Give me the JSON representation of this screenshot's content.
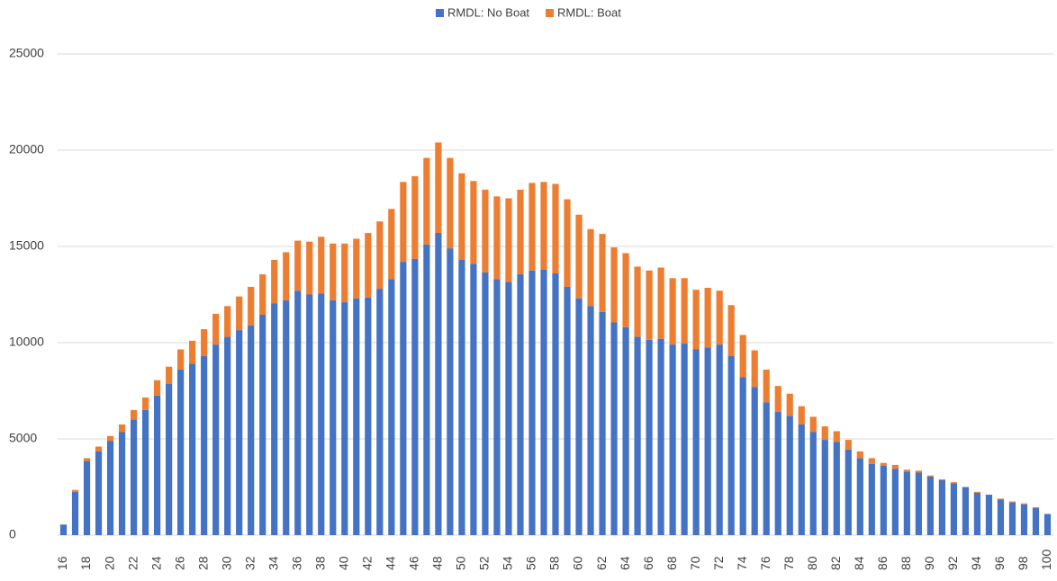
{
  "chart_data": {
    "type": "bar",
    "stacked": true,
    "categories": [
      16,
      null,
      18,
      null,
      20,
      null,
      22,
      null,
      24,
      null,
      26,
      null,
      28,
      null,
      30,
      null,
      32,
      null,
      34,
      null,
      36,
      null,
      38,
      null,
      40,
      null,
      42,
      null,
      44,
      null,
      46,
      null,
      48,
      null,
      50,
      null,
      52,
      null,
      54,
      null,
      56,
      null,
      58,
      null,
      60,
      null,
      62,
      null,
      64,
      null,
      66,
      null,
      68,
      null,
      70,
      null,
      72,
      null,
      74,
      null,
      76,
      null,
      78,
      null,
      80,
      null,
      82,
      null,
      84,
      null,
      86,
      null,
      88,
      null,
      90,
      null,
      92,
      null,
      94,
      null,
      96,
      null,
      98,
      null,
      100
    ],
    "series": [
      {
        "name": "RMDL: No Boat",
        "color": "#4472c4",
        "values": [
          550,
          2250,
          3850,
          4350,
          4900,
          5350,
          6000,
          6500,
          7250,
          7850,
          8600,
          8900,
          9300,
          9900,
          10300,
          10650,
          10900,
          11450,
          12050,
          12200,
          12700,
          12500,
          12550,
          12200,
          12100,
          12300,
          12350,
          12800,
          13300,
          14200,
          14350,
          15100,
          15700,
          14900,
          14300,
          14100,
          13650,
          13300,
          13150,
          13550,
          13750,
          13800,
          13600,
          12900,
          12300,
          11900,
          11600,
          11050,
          10800,
          10300,
          10150,
          10200,
          9900,
          9950,
          9650,
          9750,
          9900,
          9300,
          8200,
          7700,
          6900,
          6400,
          6200,
          5750,
          5350,
          4950,
          4850,
          4450,
          4000,
          3700,
          3600,
          3450,
          3300,
          3250,
          3050,
          2850,
          2700,
          2500,
          2200,
          2100,
          1850,
          1700,
          1600,
          1400,
          1100
        ]
      },
      {
        "name": "RMDL: Boat",
        "color": "#ed7d31",
        "values": [
          0,
          100,
          150,
          250,
          250,
          400,
          500,
          650,
          800,
          900,
          1050,
          1200,
          1400,
          1600,
          1600,
          1750,
          2000,
          2100,
          2250,
          2500,
          2600,
          2750,
          2950,
          2950,
          3050,
          3100,
          3350,
          3500,
          3650,
          4150,
          4300,
          4500,
          4700,
          4700,
          4500,
          4300,
          4300,
          4300,
          4350,
          4400,
          4550,
          4550,
          4650,
          4550,
          4350,
          4000,
          4050,
          3900,
          3850,
          3650,
          3600,
          3700,
          3450,
          3400,
          3100,
          3100,
          2800,
          2650,
          2200,
          1900,
          1700,
          1350,
          1150,
          950,
          800,
          700,
          550,
          500,
          350,
          300,
          150,
          200,
          100,
          100,
          50,
          50,
          50,
          0,
          50,
          0,
          50,
          50,
          50,
          50,
          0
        ]
      }
    ],
    "ylim": [
      0,
      25000
    ],
    "yticks": [
      0,
      5000,
      10000,
      15000,
      20000,
      25000
    ],
    "grid": true,
    "legend": "top"
  }
}
